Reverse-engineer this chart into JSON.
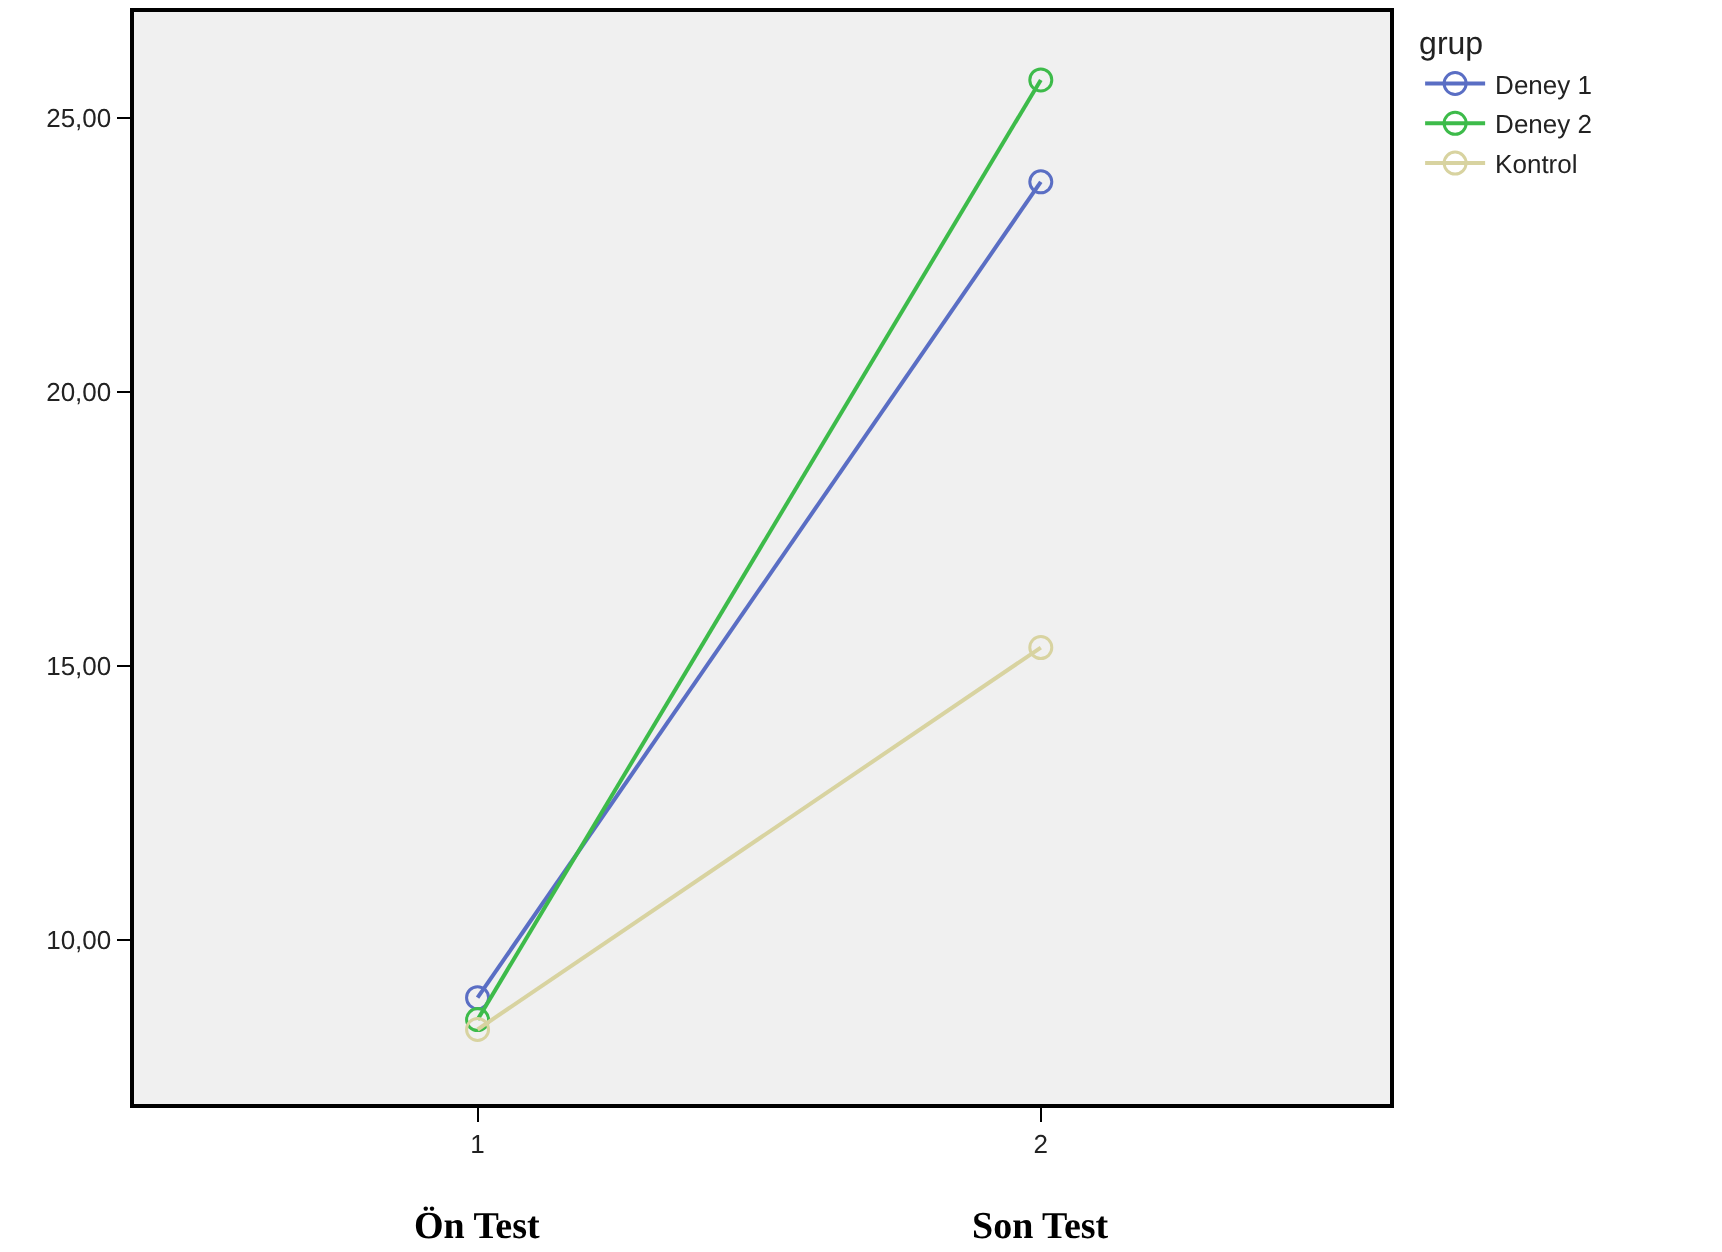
{
  "chart_data": {
    "type": "line",
    "x": [
      1,
      2
    ],
    "series": [
      {
        "name": "Deney 1",
        "color": "#5a6ec4",
        "values": [
          8.94,
          23.83
        ]
      },
      {
        "name": "Deney 2",
        "color": "#3dbb4a",
        "values": [
          8.54,
          25.69
        ]
      },
      {
        "name": "Kontrol",
        "color": "#d8d3a0",
        "values": [
          8.36,
          15.33
        ]
      }
    ],
    "legend_title": "grup",
    "legend": "top right",
    "marker": "circle",
    "grid": false,
    "xlim": [
      0.39,
      2.62
    ],
    "xticks": [
      1,
      2
    ],
    "ylim": [
      7.0,
      26.93
    ],
    "yticks": [
      {
        "value": 10,
        "label": "10,00"
      },
      {
        "value": 15,
        "label": "15,00"
      },
      {
        "value": 20,
        "label": "20,00"
      },
      {
        "value": 25,
        "label": "25,00"
      }
    ],
    "annotations": [
      "Ön Test",
      "Son Test"
    ]
  }
}
